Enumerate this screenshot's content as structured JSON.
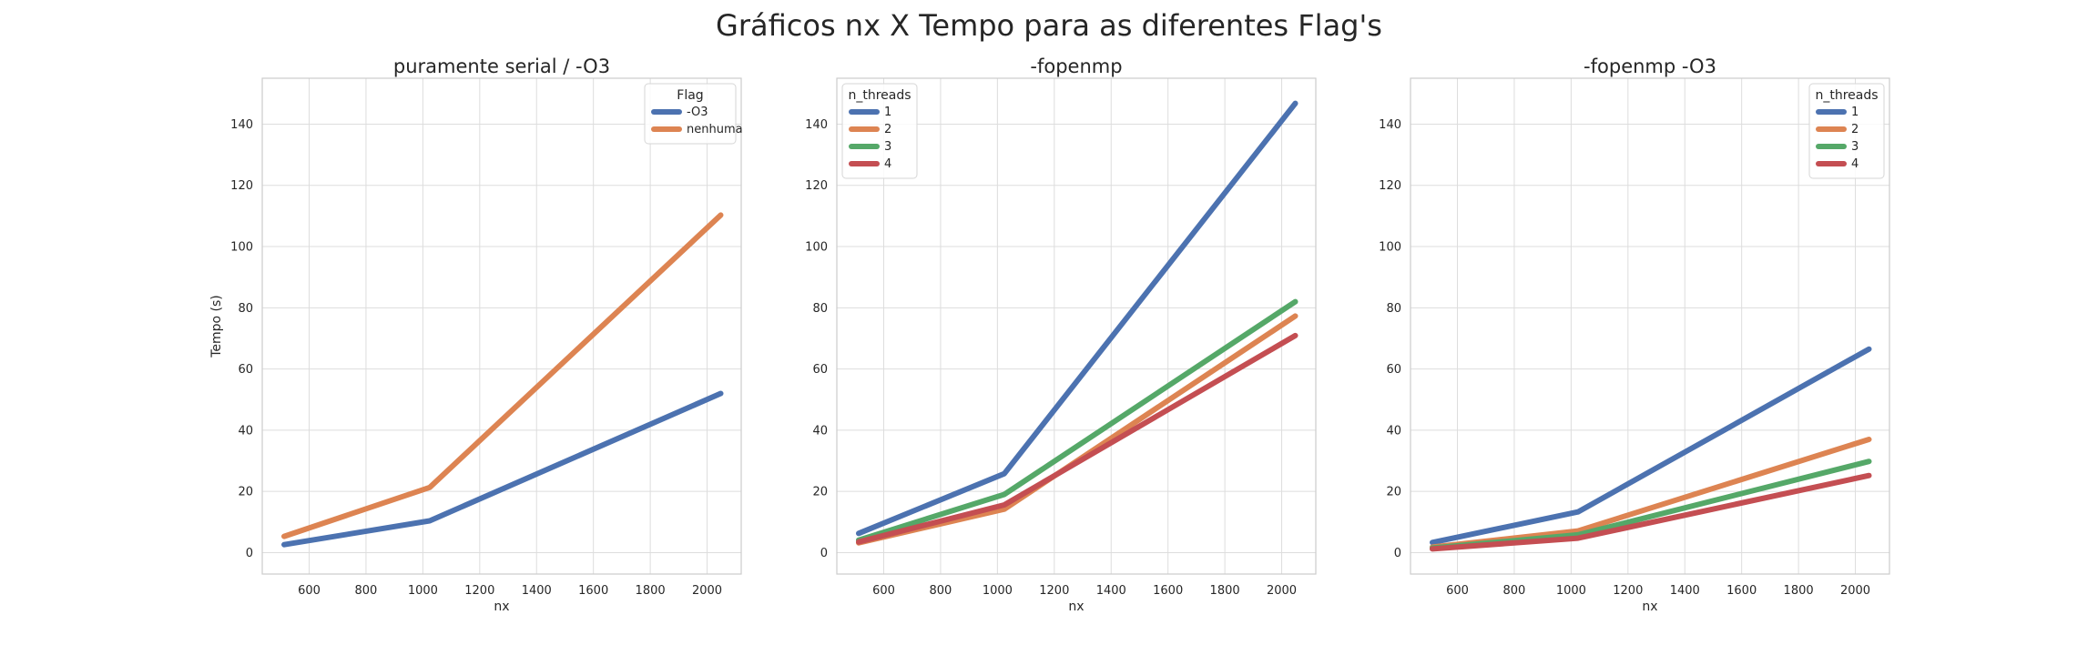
{
  "figure": {
    "title": "Gráficos nx X Tempo para as diferentes Flag's"
  },
  "colors": {
    "blue": "#4c72b0",
    "orange": "#dd8452",
    "green": "#55a868",
    "red": "#c44e52"
  },
  "chart_data": [
    {
      "type": "line",
      "title": "puramente serial / -O3",
      "xlabel": "nx",
      "ylabel": "Tempo (s)",
      "xlim": [
        435,
        2120
      ],
      "ylim": [
        -7,
        155
      ],
      "xticks": [
        600,
        800,
        1000,
        1200,
        1400,
        1600,
        1800,
        2000
      ],
      "yticks": [
        0,
        20,
        40,
        60,
        80,
        100,
        120,
        140
      ],
      "grid": true,
      "legend": {
        "title": "Flag",
        "placement": "top-right"
      },
      "x": [
        512,
        1024,
        2048
      ],
      "series": [
        {
          "name": "-O3",
          "color": "#4c72b0",
          "values": [
            2.6,
            10.4,
            52
          ]
        },
        {
          "name": "nenhuma",
          "color": "#dd8452",
          "values": [
            5.3,
            21.3,
            110.3
          ]
        }
      ]
    },
    {
      "type": "line",
      "title": "-fopenmp",
      "xlabel": "nx",
      "ylabel": "",
      "xlim": [
        435,
        2120
      ],
      "ylim": [
        -7,
        155
      ],
      "xticks": [
        600,
        800,
        1000,
        1200,
        1400,
        1600,
        1800,
        2000
      ],
      "yticks": [
        0,
        20,
        40,
        60,
        80,
        100,
        120,
        140
      ],
      "grid": true,
      "legend": {
        "title": "n_threads",
        "placement": "top-left"
      },
      "x": [
        512,
        1024,
        2048
      ],
      "series": [
        {
          "name": "1",
          "color": "#4c72b0",
          "values": [
            6.3,
            25.8,
            146.8
          ]
        },
        {
          "name": "2",
          "color": "#dd8452",
          "values": [
            3.2,
            14.2,
            77.3
          ]
        },
        {
          "name": "3",
          "color": "#55a868",
          "values": [
            4.1,
            19.0,
            82.0
          ]
        },
        {
          "name": "4",
          "color": "#c44e52",
          "values": [
            3.5,
            15.6,
            70.9
          ]
        }
      ]
    },
    {
      "type": "line",
      "title": "-fopenmp -O3",
      "xlabel": "nx",
      "ylabel": "",
      "xlim": [
        435,
        2120
      ],
      "ylim": [
        -7,
        155
      ],
      "xticks": [
        600,
        800,
        1000,
        1200,
        1400,
        1600,
        1800,
        2000
      ],
      "yticks": [
        0,
        20,
        40,
        60,
        80,
        100,
        120,
        140
      ],
      "grid": true,
      "legend": {
        "title": "n_threads",
        "placement": "top-right"
      },
      "x": [
        512,
        1024,
        2048
      ],
      "series": [
        {
          "name": "1",
          "color": "#4c72b0",
          "values": [
            3.3,
            13.3,
            66.5
          ]
        },
        {
          "name": "2",
          "color": "#dd8452",
          "values": [
            1.8,
            7.1,
            37.0
          ]
        },
        {
          "name": "3",
          "color": "#55a868",
          "values": [
            1.5,
            5.8,
            29.8
          ]
        },
        {
          "name": "4",
          "color": "#c44e52",
          "values": [
            1.2,
            4.7,
            25.2
          ]
        }
      ]
    }
  ]
}
